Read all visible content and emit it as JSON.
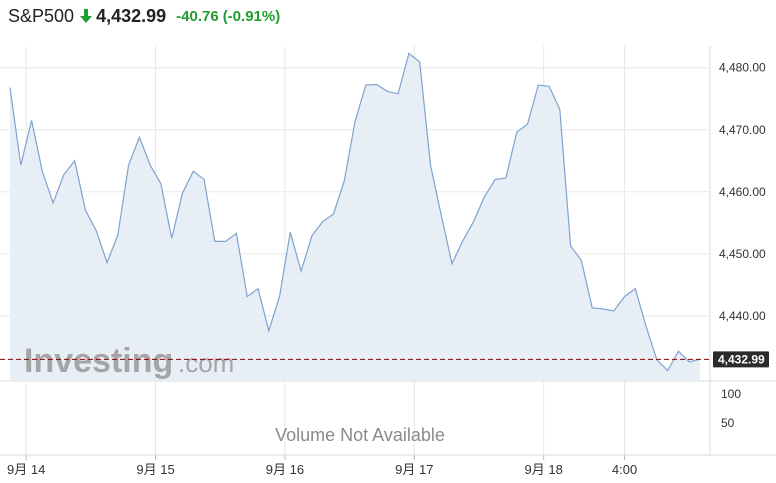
{
  "header": {
    "symbol": "S&P500",
    "price": "4,432.99",
    "change": "-40.76",
    "change_pct": "(-0.91%)",
    "direction_icon": "arrow-down-icon",
    "change_color": "#1f9d2e",
    "arrow_color": "#1f9d2e"
  },
  "watermark": {
    "brand": "Investing",
    "suffix": ".com"
  },
  "volume_panel": {
    "message": "Volume Not Available",
    "ticks": [
      "100",
      "50"
    ]
  },
  "colors": {
    "line": "#7ea3d0",
    "area": "#e8eef5",
    "last_price_line": "#8b0000",
    "last_price_label_bg": "#2b2b2b",
    "grid": "#e8e8e8"
  },
  "chart_data": {
    "type": "area",
    "title": "",
    "xlabel": "",
    "ylabel": "",
    "ylim": [
      4429.5,
      4483.5
    ],
    "y_ticks": [
      4440,
      4450,
      4460,
      4470,
      4480
    ],
    "y_tick_labels": [
      "4,440.00",
      "4,450.00",
      "4,460.00",
      "4,470.00",
      "4,480.00"
    ],
    "x_tick_labels": [
      "9月 14",
      "9月 15",
      "9月 16",
      "9月 17",
      "9月 18",
      "4:00"
    ],
    "x_tick_index": [
      1.5,
      13.5,
      25.5,
      37.5,
      49.5,
      57
    ],
    "last_price": 4432.99,
    "last_price_label": "4,432.99",
    "grid": true,
    "values": [
      4476.8,
      4464.3,
      4471.5,
      4463.3,
      4458.2,
      4462.8,
      4465.0,
      4457.0,
      4453.7,
      4448.6,
      4453.0,
      4464.3,
      4468.8,
      4464.3,
      4461.3,
      4452.5,
      4459.8,
      4463.3,
      4462.0,
      4452.0,
      4452.0,
      4453.3,
      4443.1,
      4444.4,
      4437.6,
      4443.1,
      4453.5,
      4447.2,
      4452.9,
      4455.2,
      4456.4,
      4461.7,
      4471.3,
      4477.2,
      4477.3,
      4476.2,
      4475.8,
      4482.3,
      4480.9,
      4464.3,
      4456.2,
      4448.4,
      4452.1,
      4455.2,
      4459.2,
      4462.0,
      4462.2,
      4469.6,
      4470.9,
      4477.2,
      4477.0,
      4473.3,
      4451.3,
      4448.9,
      4441.3,
      4441.1,
      4440.8,
      4443.1,
      4444.4,
      4438.3,
      4432.9,
      4431.2,
      4434.3,
      4432.6,
      4432.99
    ]
  }
}
